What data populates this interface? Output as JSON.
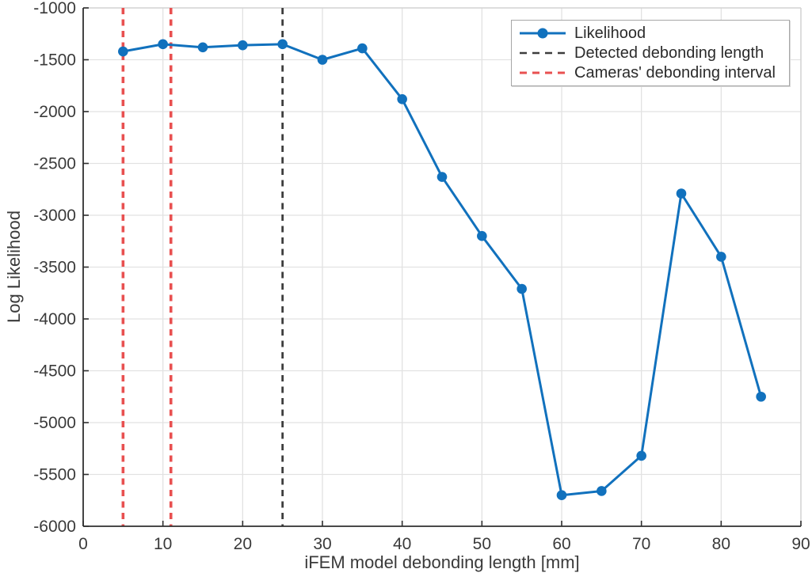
{
  "chart_data": {
    "type": "line",
    "title": "",
    "xlabel": "iFEM model debonding length [mm]",
    "ylabel": "Log Likelihood",
    "xlim": [
      0,
      90
    ],
    "ylim": [
      -6000,
      -1000
    ],
    "xticks": [
      0,
      10,
      20,
      30,
      40,
      50,
      60,
      70,
      80,
      90
    ],
    "yticks": [
      -6000,
      -5500,
      -5000,
      -4500,
      -4000,
      -3500,
      -3000,
      -2500,
      -2000,
      -1500,
      -1000
    ],
    "grid": true,
    "legend_position": "top-right",
    "series": [
      {
        "name": "Likelihood",
        "type": "line-marker",
        "style": "solid",
        "color": "#1171bd",
        "x": [
          5,
          10,
          15,
          20,
          25,
          30,
          35,
          40,
          45,
          50,
          55,
          60,
          65,
          70,
          75,
          80,
          85
        ],
        "y": [
          -1420,
          -1350,
          -1380,
          -1360,
          -1350,
          -1500,
          -1390,
          -1880,
          -2630,
          -3200,
          -3710,
          -5700,
          -5660,
          -5320,
          -2790,
          -3400,
          -4750
        ]
      },
      {
        "name": "Detected debonding length",
        "type": "vline",
        "style": "dashed",
        "color": "#3d3d3d",
        "x": [
          25
        ]
      },
      {
        "name": "Cameras' debonding interval",
        "type": "vline",
        "style": "dashed",
        "color": "#e85050",
        "x": [
          5,
          11
        ]
      }
    ],
    "colors": {
      "grid": "#e2e2e2",
      "axis": "#2f2f2f",
      "box_light": "#d2d2d2",
      "background": "#ffffff"
    }
  }
}
